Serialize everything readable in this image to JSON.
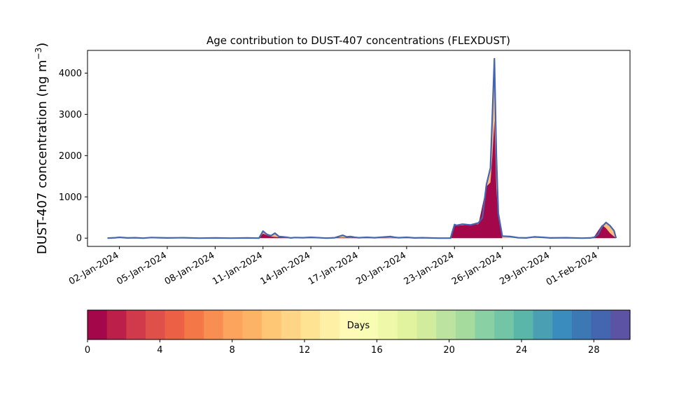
{
  "chart_data": {
    "type": "area",
    "title": "Age contribution to DUST-407 concentrations (FLEXDUST)",
    "ylabel": "DUST-407 concentration (ng m$^{-3}$)",
    "ylabel_main": "DUST-407 concentration (ng m",
    "ylabel_sup": "−3",
    "ylabel_close": ")",
    "xlim": [
      "2023-12-31T00:00",
      "2024-02-03T00:00"
    ],
    "ylim": [
      -200,
      4550
    ],
    "yticks": [
      0,
      1000,
      2000,
      3000,
      4000
    ],
    "xticks": [
      {
        "date": "2024-01-02",
        "label": "02-Jan-2024"
      },
      {
        "date": "2024-01-05",
        "label": "05-Jan-2024"
      },
      {
        "date": "2024-01-08",
        "label": "08-Jan-2024"
      },
      {
        "date": "2024-01-11",
        "label": "11-Jan-2024"
      },
      {
        "date": "2024-01-14",
        "label": "14-Jan-2024"
      },
      {
        "date": "2024-01-17",
        "label": "17-Jan-2024"
      },
      {
        "date": "2024-01-20",
        "label": "20-Jan-2024"
      },
      {
        "date": "2024-01-23",
        "label": "23-Jan-2024"
      },
      {
        "date": "2024-01-26",
        "label": "26-Jan-2024"
      },
      {
        "date": "2024-01-29",
        "label": "29-Jan-2024"
      },
      {
        "date": "2024-02-01",
        "label": "01-Feb-2024"
      }
    ],
    "total": {
      "x": [
        "2024-01-01T06:00",
        "2024-01-01T18:00",
        "2024-01-02T00:00",
        "2024-01-02T12:00",
        "2024-01-03T00:00",
        "2024-01-03T12:00",
        "2024-01-04T00:00",
        "2024-01-04T12:00",
        "2024-01-05T00:00",
        "2024-01-06T00:00",
        "2024-01-07T00:00",
        "2024-01-08T00:00",
        "2024-01-09T00:00",
        "2024-01-10T00:00",
        "2024-01-10T18:00",
        "2024-01-11T00:00",
        "2024-01-11T06:00",
        "2024-01-11T12:00",
        "2024-01-11T18:00",
        "2024-01-12T00:00",
        "2024-01-12T06:00",
        "2024-01-12T12:00",
        "2024-01-12T18:00",
        "2024-01-13T00:00",
        "2024-01-13T12:00",
        "2024-01-14T00:00",
        "2024-01-15T00:00",
        "2024-01-15T12:00",
        "2024-01-16T00:00",
        "2024-01-16T06:00",
        "2024-01-16T12:00",
        "2024-01-16T18:00",
        "2024-01-17T00:00",
        "2024-01-17T12:00",
        "2024-01-18T00:00",
        "2024-01-18T12:00",
        "2024-01-19T00:00",
        "2024-01-19T06:00",
        "2024-01-19T12:00",
        "2024-01-20T00:00",
        "2024-01-20T12:00",
        "2024-01-21T00:00",
        "2024-01-22T00:00",
        "2024-01-22T18:00",
        "2024-01-23T00:00",
        "2024-01-23T03:00",
        "2024-01-23T12:00",
        "2024-01-24T00:00",
        "2024-01-24T12:00",
        "2024-01-24T18:00",
        "2024-01-25T00:00",
        "2024-01-25T06:00",
        "2024-01-25T09:00",
        "2024-01-25T12:00",
        "2024-01-25T15:00",
        "2024-01-25T18:00",
        "2024-01-26T00:00",
        "2024-01-26T12:00",
        "2024-01-27T00:00",
        "2024-01-27T12:00",
        "2024-01-28T00:00",
        "2024-01-28T12:00",
        "2024-01-29T00:00",
        "2024-01-30T00:00",
        "2024-01-31T00:00",
        "2024-01-31T12:00",
        "2024-01-31T18:00",
        "2024-02-01T00:00",
        "2024-02-01T06:00",
        "2024-02-01T12:00",
        "2024-02-01T18:00",
        "2024-02-02T00:00",
        "2024-02-02T03:00"
      ],
      "y": [
        0,
        10,
        20,
        5,
        10,
        0,
        15,
        10,
        5,
        10,
        0,
        5,
        0,
        5,
        0,
        170,
        90,
        60,
        120,
        40,
        30,
        20,
        5,
        15,
        10,
        20,
        0,
        10,
        70,
        30,
        40,
        20,
        10,
        20,
        10,
        25,
        40,
        20,
        10,
        20,
        5,
        10,
        0,
        0,
        330,
        310,
        340,
        320,
        370,
        500,
        1300,
        1700,
        3000,
        4350,
        2000,
        600,
        50,
        40,
        10,
        5,
        30,
        20,
        5,
        10,
        0,
        5,
        20,
        90,
        280,
        380,
        300,
        180,
        0
      ]
    },
    "young_component": {
      "x": [
        "2024-01-10T18:00",
        "2024-01-11T00:00",
        "2024-01-11T06:00",
        "2024-01-11T12:00",
        "2024-01-12T00:00",
        "2024-01-22T18:00",
        "2024-01-23T00:00",
        "2024-01-24T12:00",
        "2024-01-25T00:00",
        "2024-01-25T06:00",
        "2024-01-25T09:00",
        "2024-01-25T12:00",
        "2024-01-25T15:00",
        "2024-01-25T18:00",
        "2024-01-26T00:00",
        "2024-01-31T12:00",
        "2024-01-31T18:00",
        "2024-02-01T00:00",
        "2024-02-01T06:00",
        "2024-02-01T12:00",
        "2024-02-01T18:00",
        "2024-02-02T03:00"
      ],
      "y": [
        0,
        110,
        70,
        40,
        20,
        0,
        300,
        340,
        1250,
        1350,
        2000,
        2850,
        1200,
        500,
        0,
        0,
        30,
        180,
        320,
        240,
        120,
        0
      ]
    },
    "colorbar": {
      "label": "Days",
      "range": [
        0,
        30
      ],
      "ticks": [
        0,
        4,
        8,
        12,
        16,
        20,
        24,
        28
      ],
      "colors": [
        "#a5084a",
        "#bd1f4b",
        "#d13a4b",
        "#e0504b",
        "#ec6046",
        "#f47747",
        "#f88e52",
        "#fca35e",
        "#fdb366",
        "#fec776",
        "#fed587",
        "#fee392",
        "#fef0a5",
        "#fffbb7",
        "#f9fcb3",
        "#eef8a8",
        "#e1f39e",
        "#d2ec9d",
        "#bce4a0",
        "#a6db9e",
        "#89d0a4",
        "#73c6a5",
        "#5bb6aa",
        "#4aa0b2",
        "#3a8bbe",
        "#3b78b4",
        "#4466b1",
        "#5c53a4"
      ]
    }
  }
}
